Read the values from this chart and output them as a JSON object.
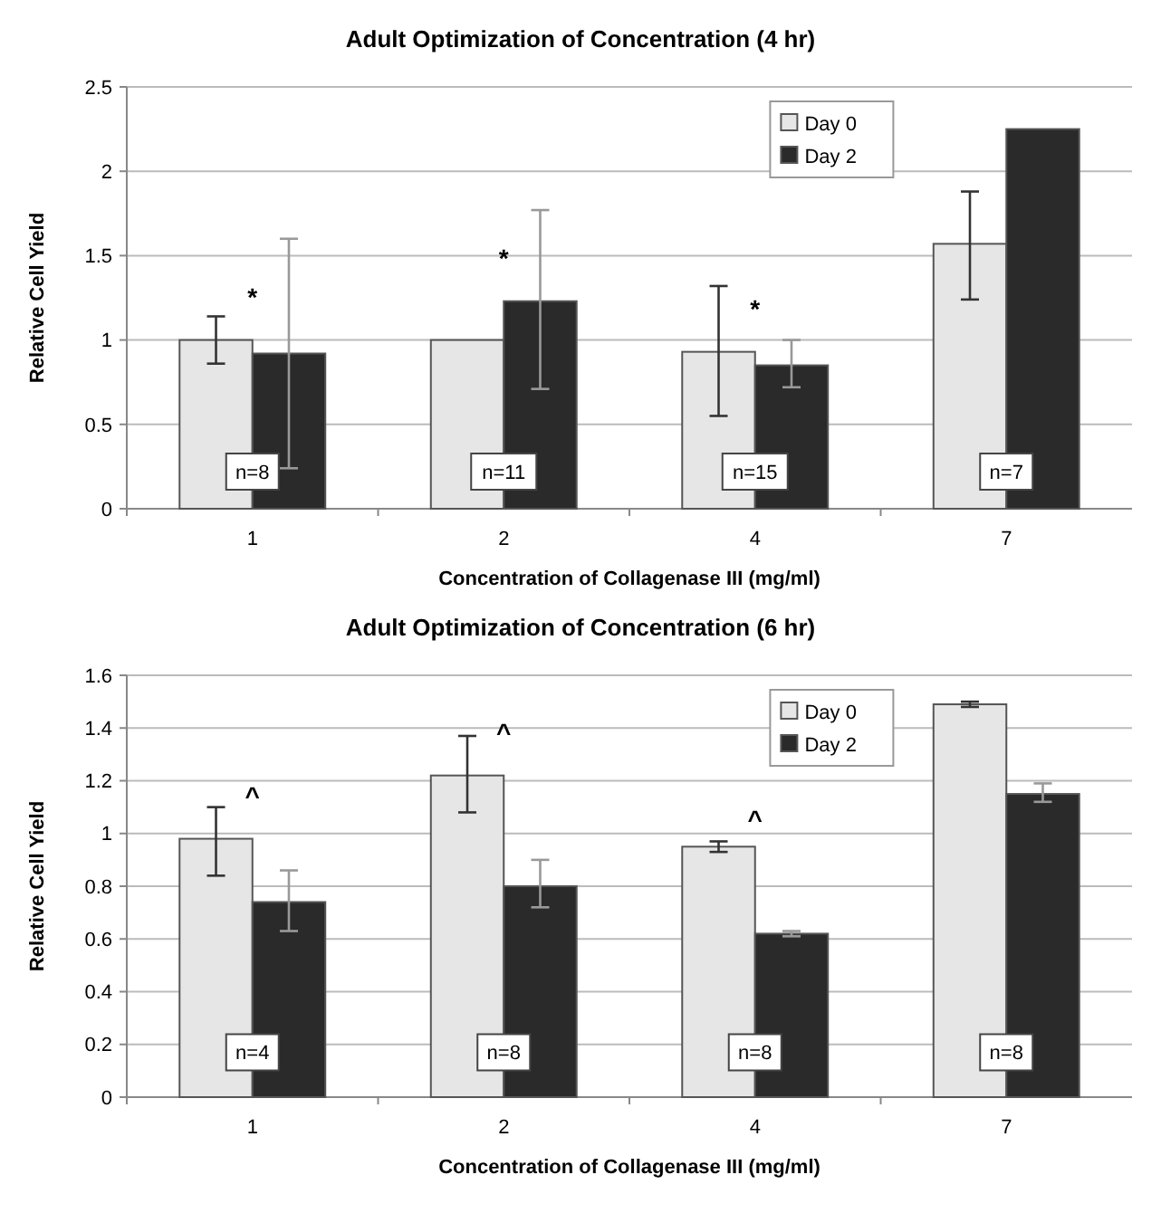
{
  "chart_data": [
    {
      "type": "bar",
      "title": "Adult Optimization of Concentration (4 hr)",
      "xlabel": "Concentration of Collagenase III (mg/ml)",
      "ylabel": "Relative Cell Yield",
      "categories": [
        "1",
        "2",
        "4",
        "7"
      ],
      "series": [
        {
          "name": "Day 0",
          "color": "#e6e6e6",
          "values": [
            1.0,
            1.0,
            0.93,
            1.57
          ],
          "errors": [
            [
              0.86,
              1.14
            ],
            null,
            [
              0.55,
              1.32
            ],
            [
              1.24,
              1.88
            ]
          ]
        },
        {
          "name": "Day 2",
          "color": "#2a2a2a",
          "values": [
            0.92,
            1.23,
            0.85,
            2.25
          ],
          "errors": [
            [
              0.24,
              1.6
            ],
            [
              0.71,
              1.77
            ],
            [
              0.72,
              1.0
            ],
            null
          ]
        }
      ],
      "ylim": [
        0,
        2.5
      ],
      "yticks": [
        0,
        0.5,
        1,
        1.5,
        2,
        2.5
      ],
      "grid": "y",
      "legend": "top right",
      "annotations": [
        "*",
        "*",
        "*",
        {
          "text": "n=8",
          "x": "1",
          "y": 0.22
        },
        {
          "text": "n=11",
          "x": "2",
          "y": 0.22
        },
        {
          "text": "n=15",
          "x": "4",
          "y": 0.22
        },
        {
          "text": "n=7",
          "x": "7",
          "y": 0.22
        }
      ]
    },
    {
      "type": "bar",
      "title": "Adult Optimization of Concentration (6 hr)",
      "xlabel": "Concentration of Collagenase III (mg/ml)",
      "ylabel": "Relative Cell Yield",
      "categories": [
        "1",
        "2",
        "4",
        "7"
      ],
      "series": [
        {
          "name": "Day 0",
          "color": "#e6e6e6",
          "values": [
            0.98,
            1.22,
            0.95,
            1.49
          ],
          "errors": [
            [
              0.84,
              1.1
            ],
            [
              1.08,
              1.37
            ],
            [
              0.93,
              0.97
            ],
            [
              1.48,
              1.5
            ]
          ]
        },
        {
          "name": "Day 2",
          "color": "#2a2a2a",
          "values": [
            0.74,
            0.8,
            0.62,
            1.15
          ],
          "errors": [
            [
              0.63,
              0.86
            ],
            [
              0.72,
              0.9
            ],
            [
              0.61,
              0.63
            ],
            [
              1.12,
              1.19
            ]
          ]
        }
      ],
      "ylim": [
        0,
        1.6
      ],
      "yticks": [
        0,
        0.2,
        0.4,
        0.6,
        0.8,
        1,
        1.2,
        1.4,
        1.6
      ],
      "grid": "y",
      "legend": "top right",
      "annotations": [
        "^",
        "^",
        "^",
        {
          "text": "n=4",
          "x": "1",
          "y": 0.17
        },
        {
          "text": "n=8",
          "x": "2",
          "y": 0.17
        },
        {
          "text": "n=8",
          "x": "4",
          "y": 0.17
        },
        {
          "text": "n=8",
          "x": "7",
          "y": 0.17
        }
      ]
    }
  ]
}
